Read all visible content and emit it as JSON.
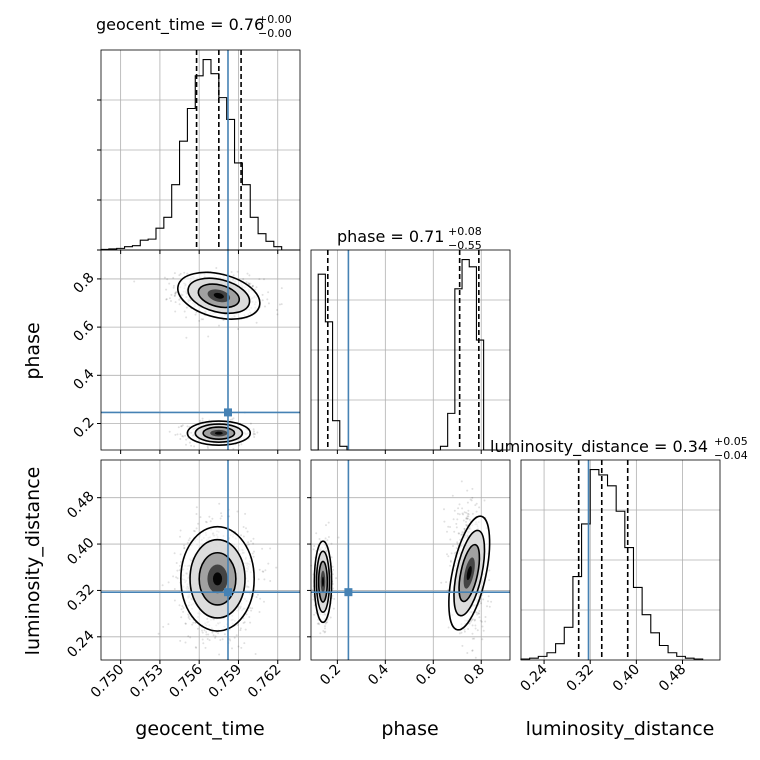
{
  "chart_data": {
    "type": "corner",
    "parameters": [
      "geocent_time",
      "phase",
      "luminosity_distance"
    ],
    "axis_labels": [
      "geocent_time",
      "phase",
      "luminosity_distance"
    ],
    "truths": [
      0.7582,
      0.246,
      0.317
    ],
    "ranges": [
      [
        0.7485,
        0.7637
      ],
      [
        0.09,
        0.92
      ],
      [
        0.2,
        0.545
      ]
    ],
    "ticks": {
      "geocent_time": [
        "0.750",
        "0.753",
        "0.756",
        "0.759",
        "0.762"
      ],
      "phase": [
        "0.2",
        "0.4",
        "0.6",
        "0.8"
      ],
      "luminosity_distance": [
        "0.24",
        "0.32",
        "0.40",
        "0.48"
      ]
    },
    "tick_values": {
      "geocent_time": [
        0.75,
        0.753,
        0.756,
        0.759,
        0.762
      ],
      "phase": [
        0.2,
        0.4,
        0.6,
        0.8
      ],
      "luminosity_distance": [
        0.24,
        0.32,
        0.4,
        0.48
      ]
    },
    "titles": [
      {
        "name": "geocent_time",
        "median": "0.76",
        "plus": "+0.00",
        "minus": "−0.00"
      },
      {
        "name": "phase",
        "median": "0.71",
        "plus": "+0.08",
        "minus": "−0.55"
      },
      {
        "name": "luminosity_distance",
        "median": "0.34",
        "plus": "+0.05",
        "minus": "−0.04"
      }
    ],
    "quantiles": {
      "geocent_time": [
        0.7558,
        0.7575,
        0.7592
      ],
      "phase": [
        0.16,
        0.71,
        0.79
      ],
      "luminosity_distance": [
        0.3,
        0.34,
        0.385
      ]
    },
    "histograms": {
      "geocent_time": {
        "bins": [
          0.7485,
          0.7491,
          0.7497,
          0.7503,
          0.7509,
          0.7515,
          0.7521,
          0.7527,
          0.7533,
          0.7539,
          0.7545,
          0.7551,
          0.7557,
          0.7563,
          0.7569,
          0.7575,
          0.7581,
          0.7587,
          0.7593,
          0.7599,
          0.7605,
          0.7611,
          0.7617,
          0.7623,
          0.7629,
          0.7635
        ],
        "counts": [
          0.5,
          1,
          1.5,
          3,
          4,
          9,
          10,
          20,
          30,
          60,
          100,
          130,
          160,
          175,
          162,
          140,
          120,
          80,
          60,
          30,
          15,
          8,
          3,
          0,
          0
        ]
      },
      "phase": {
        "bins": [
          0.09,
          0.12,
          0.15,
          0.18,
          0.21,
          0.24,
          0.27,
          0.3,
          0.33,
          0.36,
          0.39,
          0.42,
          0.45,
          0.48,
          0.51,
          0.54,
          0.57,
          0.6,
          0.63,
          0.66,
          0.69,
          0.72,
          0.75,
          0.78,
          0.81,
          0.84,
          0.87
        ],
        "counts": [
          0,
          48,
          35,
          8,
          1,
          0,
          0,
          0,
          0,
          0,
          0,
          0,
          0,
          0,
          0,
          0,
          0,
          0,
          1,
          10,
          44,
          52,
          50,
          30,
          0,
          0
        ]
      },
      "luminosity_distance": {
        "bins": [
          0.2,
          0.215,
          0.23,
          0.245,
          0.26,
          0.275,
          0.29,
          0.305,
          0.32,
          0.335,
          0.35,
          0.365,
          0.38,
          0.395,
          0.41,
          0.425,
          0.44,
          0.455,
          0.47,
          0.485,
          0.5,
          0.515
        ],
        "counts": [
          0.5,
          1,
          2,
          4,
          9,
          18,
          46,
          75,
          105,
          102,
          96,
          82,
          62,
          40,
          25,
          15,
          8,
          4,
          2,
          1,
          0.5
        ]
      }
    }
  }
}
